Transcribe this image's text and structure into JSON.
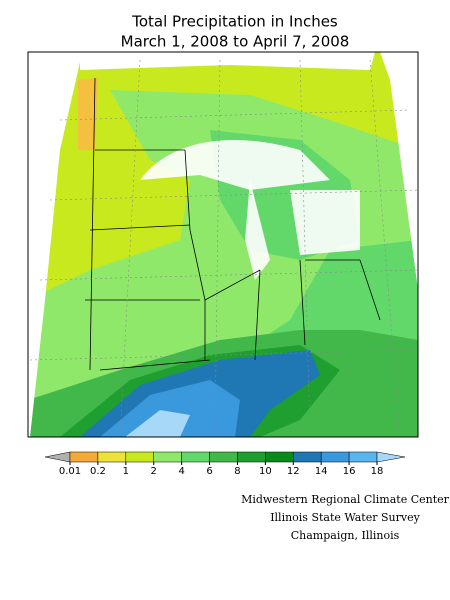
{
  "title": [
    "Total Precipitation in Inches",
    "March 1, 2008 to April 7, 2008"
  ],
  "legend": {
    "ticks": [
      0.01,
      0.2,
      1,
      2,
      4,
      6,
      8,
      10,
      12,
      14,
      16,
      18
    ],
    "colors": [
      "#b0b0b0",
      "#f4a93a",
      "#ede23a",
      "#c9e91f",
      "#8fe86a",
      "#62d86a",
      "#42b84a",
      "#1f9f30",
      "#0b8a1c",
      "#1f77b4",
      "#3a98dc",
      "#5ab4ee",
      "#a8d8f8"
    ]
  },
  "credits": [
    "Midwestern Regional Climate Center",
    "Illinois State Water Survey",
    "Champaign, Illinois"
  ]
}
